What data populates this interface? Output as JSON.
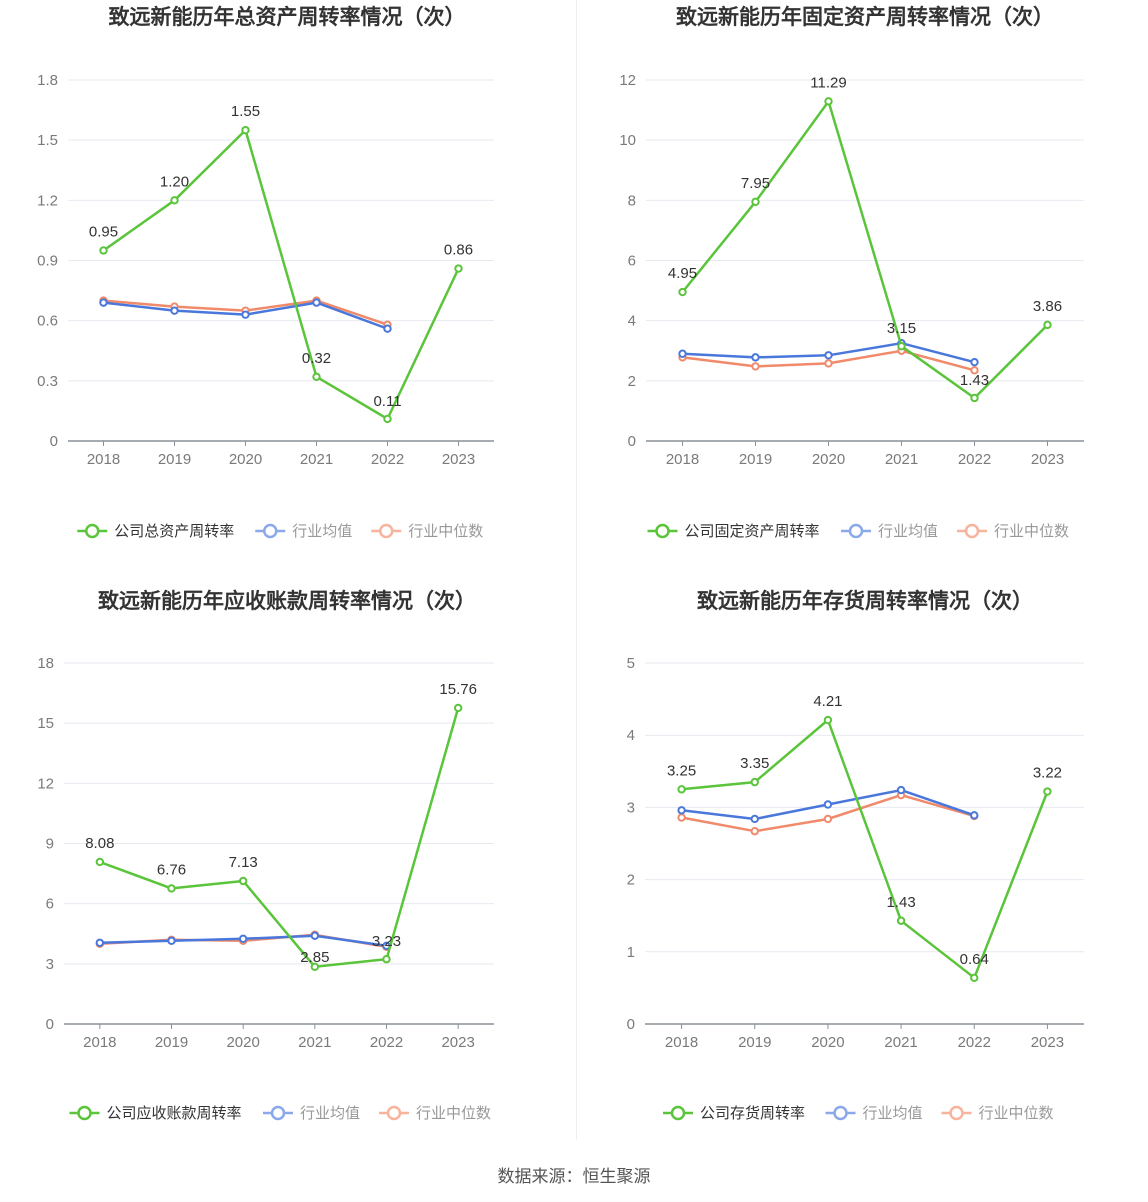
{
  "source": "数据来源：恒生聚源",
  "chart_data": [
    {
      "type": "line",
      "title": "致远新能历年总资产周转率情况（次）",
      "categories": [
        "2018",
        "2019",
        "2020",
        "2021",
        "2022",
        "2023"
      ],
      "ylim": [
        0,
        1.8
      ],
      "yticks": [
        "0",
        "0.3",
        "0.6",
        "0.9",
        "1.2",
        "1.5",
        "1.8"
      ],
      "grid": true,
      "legend_position": "bottom",
      "series": [
        {
          "name": "公司总资产周转率",
          "color": "#5ac43a",
          "values": [
            0.95,
            1.2,
            1.55,
            0.32,
            0.11,
            0.86
          ],
          "labels": [
            "0.95",
            "1.20",
            "1.55",
            "0.32",
            "0.11",
            "0.86"
          ]
        },
        {
          "name": "行业均值",
          "color": "#4a77db",
          "values": [
            0.69,
            0.65,
            0.63,
            0.69,
            0.56,
            null
          ]
        },
        {
          "name": "行业中位数",
          "color": "#f08a6a",
          "values": [
            0.7,
            0.67,
            0.65,
            0.7,
            0.58,
            null
          ]
        }
      ]
    },
    {
      "type": "line",
      "title": "致远新能历年固定资产周转率情况（次）",
      "categories": [
        "2018",
        "2019",
        "2020",
        "2021",
        "2022",
        "2023"
      ],
      "ylim": [
        0,
        12
      ],
      "yticks": [
        "0",
        "2",
        "4",
        "6",
        "8",
        "10",
        "12"
      ],
      "grid": true,
      "legend_position": "bottom",
      "series": [
        {
          "name": "公司固定资产周转率",
          "color": "#5ac43a",
          "values": [
            4.95,
            7.95,
            11.29,
            3.15,
            1.43,
            3.86
          ],
          "labels": [
            "4.95",
            "7.95",
            "11.29",
            "3.15",
            "1.43",
            "3.86"
          ]
        },
        {
          "name": "行业均值",
          "color": "#4a77db",
          "values": [
            2.9,
            2.78,
            2.85,
            3.25,
            2.62,
            null
          ]
        },
        {
          "name": "行业中位数",
          "color": "#f08a6a",
          "values": [
            2.78,
            2.48,
            2.58,
            3.0,
            2.35,
            null
          ]
        }
      ]
    },
    {
      "type": "line",
      "title": "致远新能历年应收账款周转率情况（次）",
      "categories": [
        "2018",
        "2019",
        "2020",
        "2021",
        "2022",
        "2023"
      ],
      "ylim": [
        0,
        18
      ],
      "yticks": [
        "0",
        "3",
        "6",
        "9",
        "12",
        "15",
        "18"
      ],
      "grid": true,
      "legend_position": "bottom",
      "series": [
        {
          "name": "公司应收账款周转率",
          "color": "#5ac43a",
          "values": [
            8.08,
            6.76,
            7.13,
            2.85,
            3.23,
            15.76
          ],
          "labels": [
            "8.08",
            "6.76",
            "7.13",
            "2.85",
            "3.23",
            "15.76"
          ]
        },
        {
          "name": "行业均值",
          "color": "#4a77db",
          "values": [
            4.05,
            4.15,
            4.25,
            4.4,
            3.9,
            null
          ]
        },
        {
          "name": "行业中位数",
          "color": "#f08a6a",
          "values": [
            4.0,
            4.2,
            4.15,
            4.45,
            3.85,
            null
          ]
        }
      ]
    },
    {
      "type": "line",
      "title": "致远新能历年存货周转率情况（次）",
      "categories": [
        "2018",
        "2019",
        "2020",
        "2021",
        "2022",
        "2023"
      ],
      "ylim": [
        0,
        5
      ],
      "yticks": [
        "0",
        "1",
        "2",
        "3",
        "4",
        "5"
      ],
      "grid": true,
      "legend_position": "bottom",
      "series": [
        {
          "name": "公司存货周转率",
          "color": "#5ac43a",
          "values": [
            3.25,
            3.35,
            4.21,
            1.43,
            0.64,
            3.22
          ],
          "labels": [
            "3.25",
            "3.35",
            "4.21",
            "1.43",
            "0.64",
            "3.22"
          ]
        },
        {
          "name": "行业均值",
          "color": "#4a77db",
          "values": [
            2.96,
            2.84,
            3.04,
            3.24,
            2.89,
            null
          ]
        },
        {
          "name": "行业中位数",
          "color": "#f08a6a",
          "values": [
            2.86,
            2.67,
            2.84,
            3.17,
            2.88,
            null
          ]
        }
      ]
    }
  ]
}
